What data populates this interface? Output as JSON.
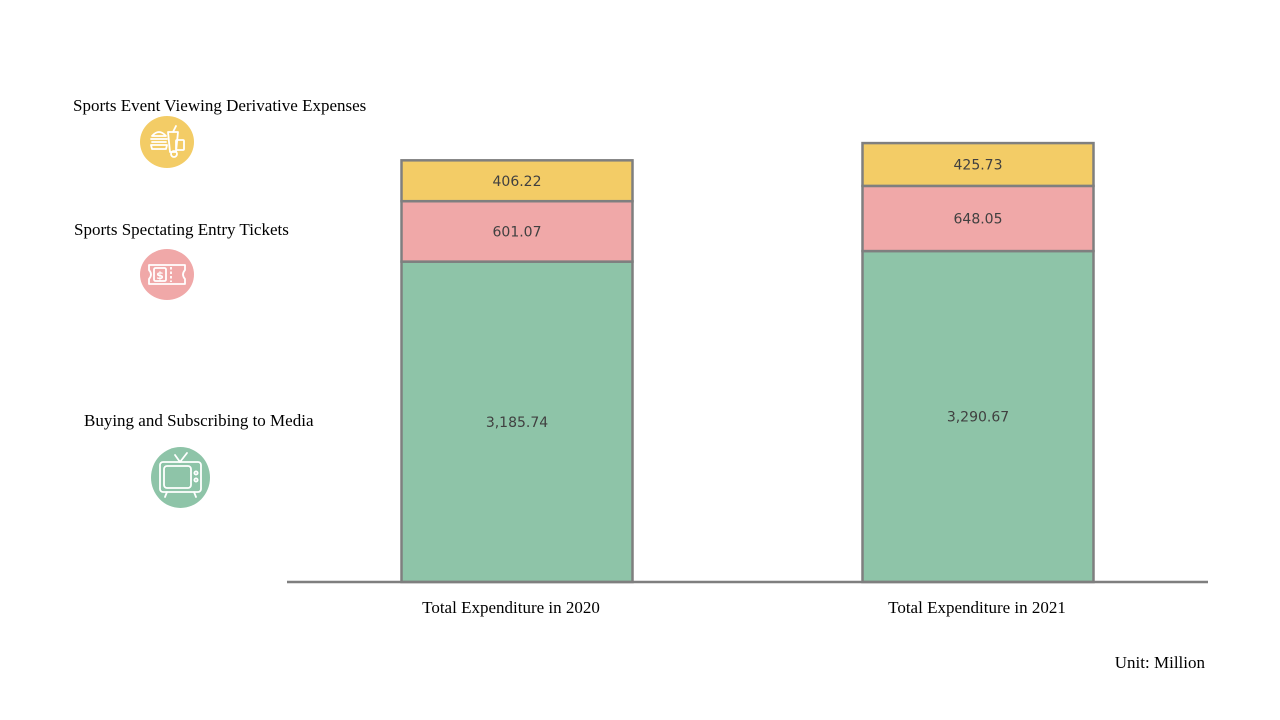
{
  "chart_data": {
    "type": "bar",
    "stacked": true,
    "categories": [
      "Total Expenditure in 2020",
      "Total Expenditure in 2021"
    ],
    "series": [
      {
        "name": "Buying and Subscribing to Media",
        "values": [
          3185.74,
          3290.67
        ],
        "labels": [
          "3,185.74",
          "3,290.67"
        ],
        "color": "#8ec4a8",
        "icon": "tv-icon"
      },
      {
        "name": "Sports Spectating Entry Tickets",
        "values": [
          601.07,
          648.05
        ],
        "labels": [
          "601.07",
          "648.05"
        ],
        "color": "#f0a8a8",
        "icon": "ticket-icon"
      },
      {
        "name": "Sports Event Viewing Derivative Expenses",
        "values": [
          406.22,
          425.73
        ],
        "labels": [
          "406.22",
          "425.73"
        ],
        "color": "#f3cc66",
        "icon": "food-icon"
      }
    ],
    "unit": "Unit: Million",
    "legend": "left",
    "grid": false,
    "ylim": [
      0,
      4425
    ]
  }
}
